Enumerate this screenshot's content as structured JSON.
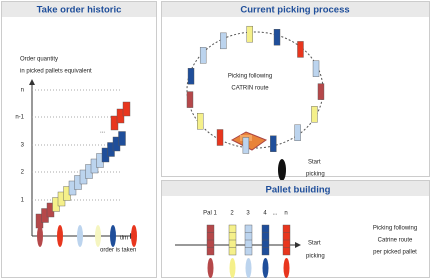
{
  "left": {
    "title": "Take order historic",
    "axis_title_1": "Order quantity",
    "axis_title_2": "in picked pallets equivalent",
    "y_labels": [
      "n",
      "n-1",
      "3",
      "2",
      "1"
    ],
    "ellipsis": "...",
    "x_label_1": "tim",
    "x_label_2": "order is taken"
  },
  "current": {
    "title": "Current picking process",
    "center_1": "Picking following",
    "center_2": "CATRIN route",
    "start_1": "Start",
    "start_2": "picking"
  },
  "building": {
    "title": "Pallet building",
    "pallets": [
      "Pal 1",
      "2",
      "3",
      "4",
      "...",
      "n"
    ],
    "note_1": "Picking following",
    "note_2": "Catrine route",
    "note_3": "per picked pallet",
    "start_1": "Start",
    "start_2": "picking"
  }
}
